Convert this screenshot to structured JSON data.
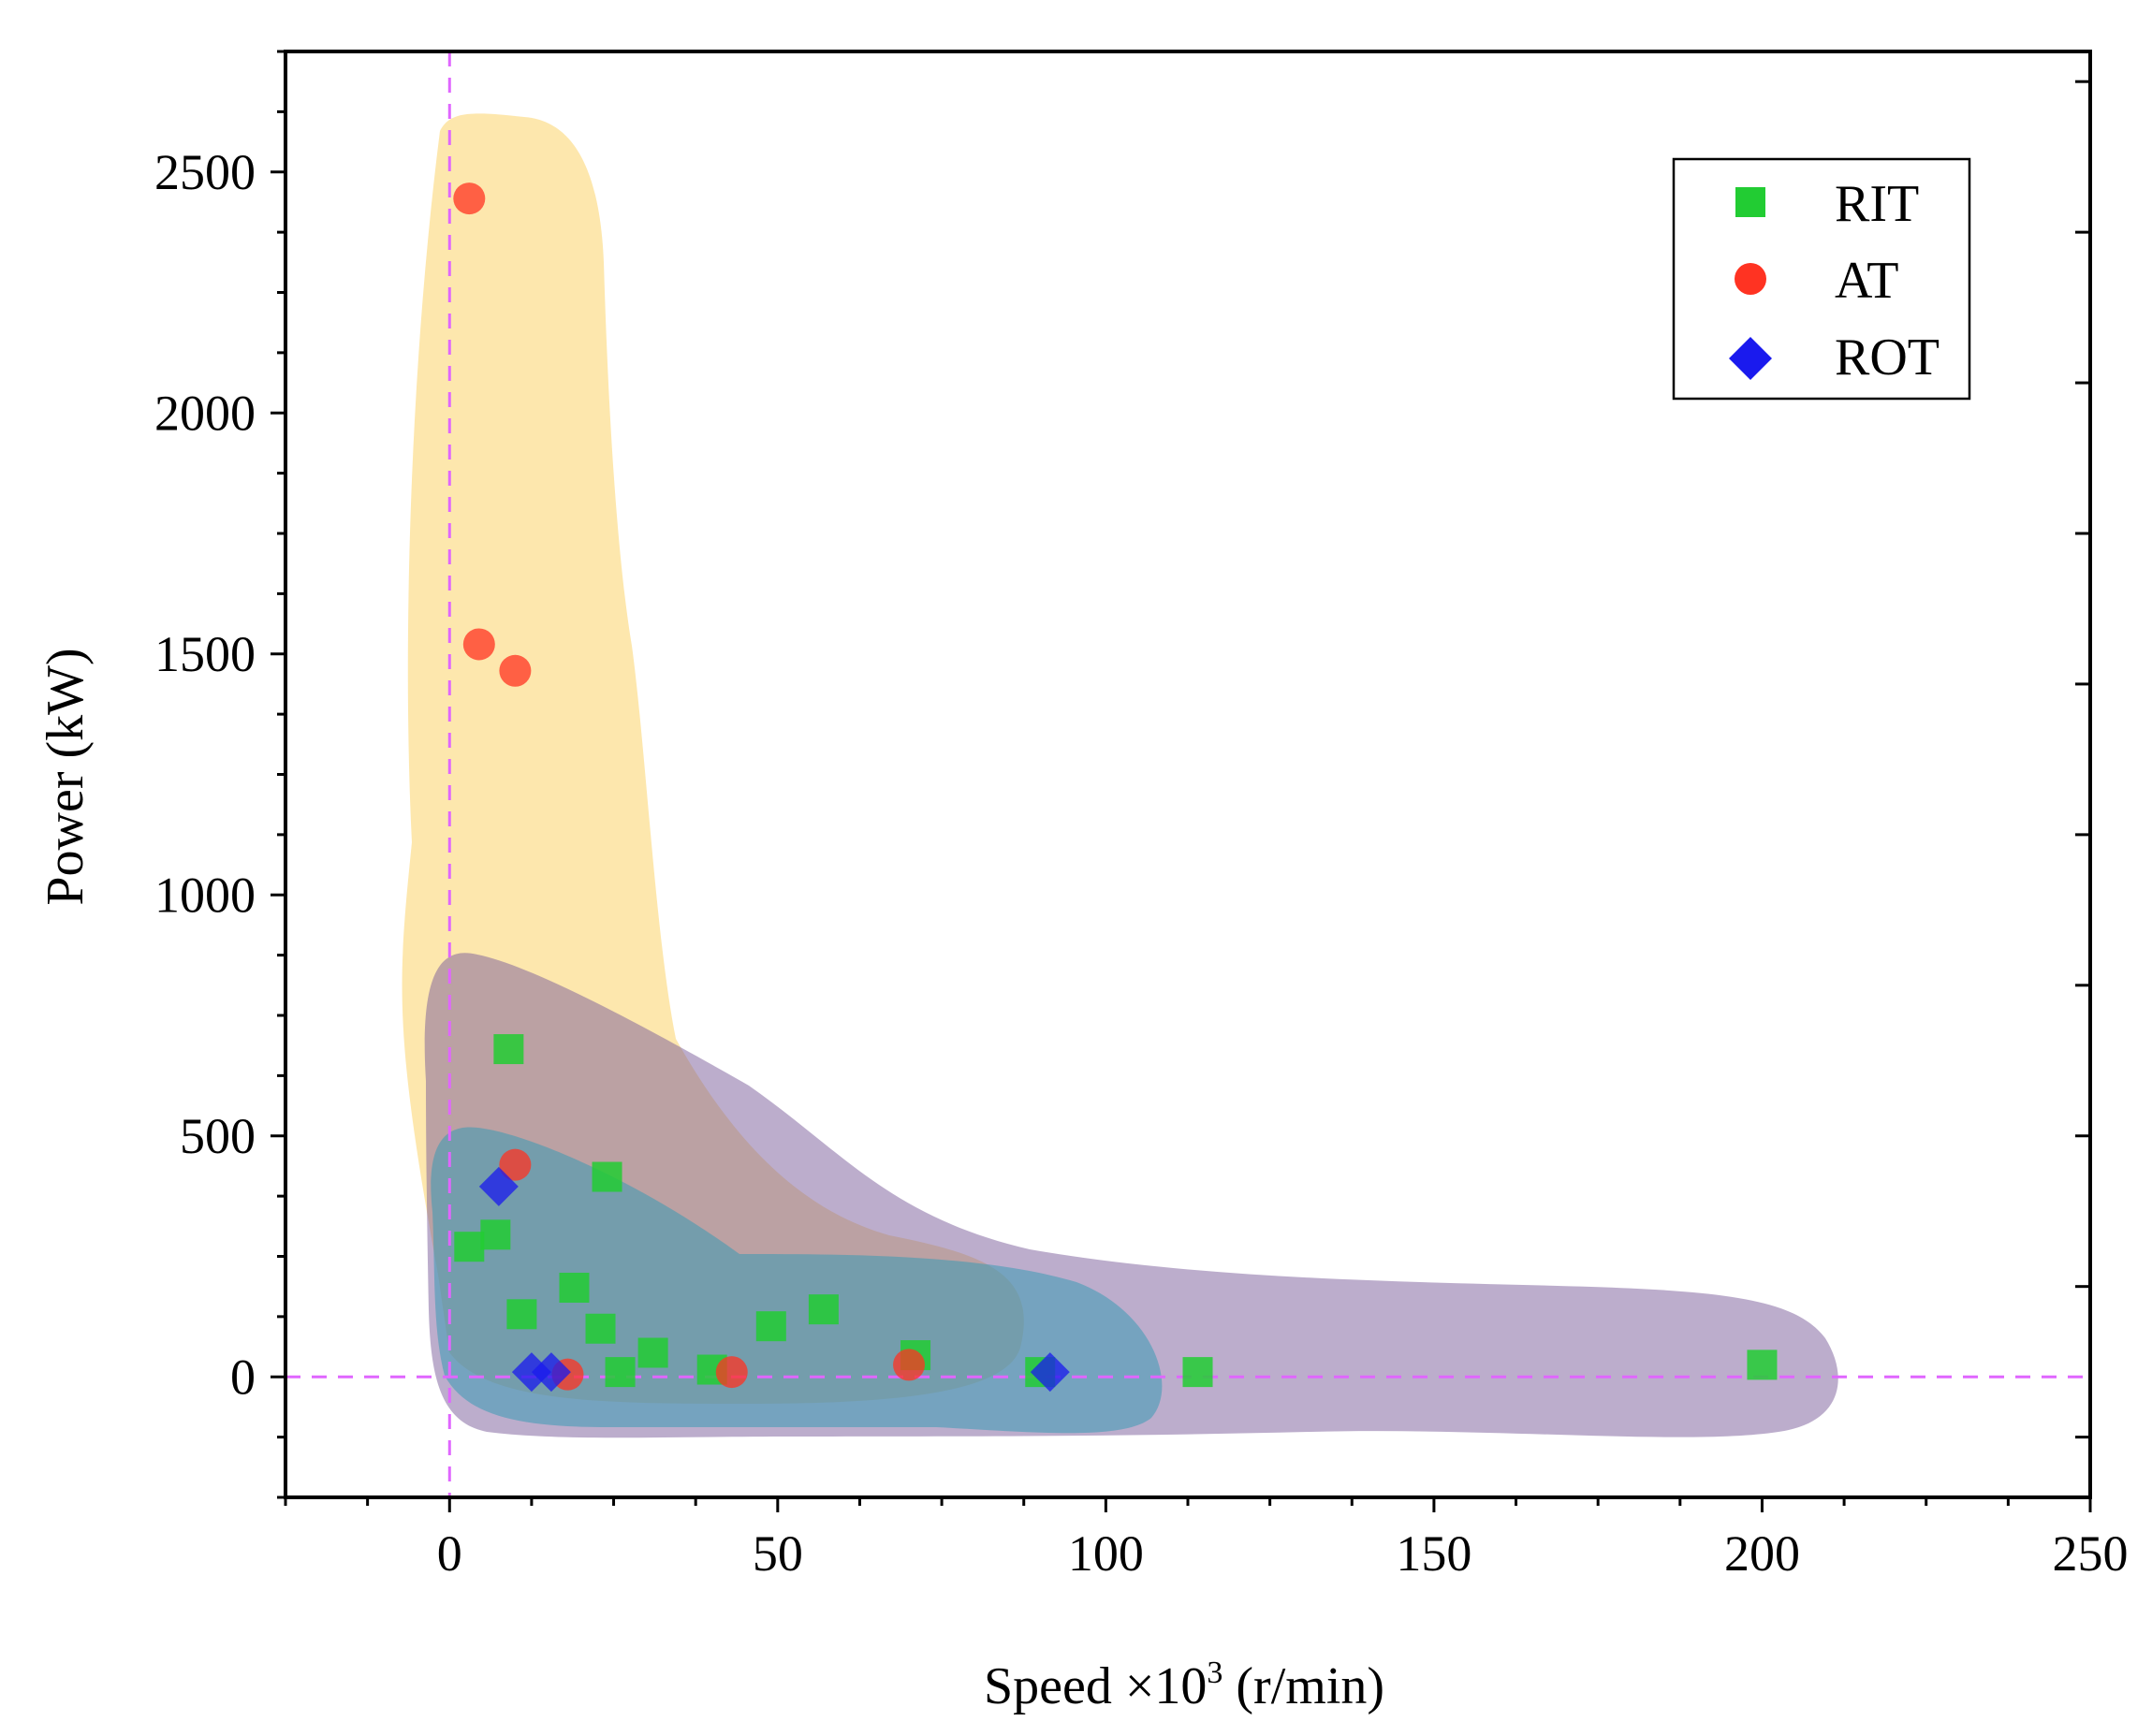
{
  "chart_data": {
    "type": "scatter",
    "title": "",
    "xlabel_prefix": "Speed ×10",
    "xlabel_sup": "3",
    "xlabel_suffix": " (r/min)",
    "ylabel": "Power (kW)",
    "xlim": [
      -25,
      250
    ],
    "ylim": [
      -250,
      2750
    ],
    "xticks": [
      0,
      50,
      100,
      150,
      200,
      250
    ],
    "yticks": [
      0,
      500,
      1000,
      1500,
      2000,
      2500
    ],
    "x_minor_step": 12.5,
    "y_minor_step": 125,
    "grid": false,
    "legend_position": "top-right",
    "reference_lines": [
      {
        "orientation": "vertical",
        "value": 0,
        "style": "dashed",
        "color": "#e066ff"
      },
      {
        "orientation": "horizontal",
        "value": 0,
        "style": "dashed",
        "color": "#e066ff"
      }
    ],
    "series": [
      {
        "name": "RIT",
        "marker": "square",
        "color": "#22cc33",
        "points": [
          [
            9,
            680
          ],
          [
            24,
            415
          ],
          [
            3,
            270
          ],
          [
            7,
            295
          ],
          [
            11,
            130
          ],
          [
            19,
            185
          ],
          [
            23,
            100
          ],
          [
            26,
            10
          ],
          [
            31,
            50
          ],
          [
            40,
            15
          ],
          [
            49,
            105
          ],
          [
            57,
            140
          ],
          [
            71,
            45
          ],
          [
            90,
            10
          ],
          [
            114,
            10
          ],
          [
            200,
            25
          ]
        ]
      },
      {
        "name": "AT",
        "marker": "circle",
        "color": "#ff3322",
        "points": [
          [
            3,
            2445
          ],
          [
            4.5,
            1520
          ],
          [
            10,
            1465
          ],
          [
            10,
            440
          ],
          [
            18,
            5
          ],
          [
            43,
            10
          ],
          [
            70,
            25
          ]
        ]
      },
      {
        "name": "ROT",
        "marker": "diamond",
        "color": "#1a1aee",
        "points": [
          [
            7.5,
            395
          ],
          [
            12.5,
            10
          ],
          [
            15.5,
            10
          ],
          [
            91.5,
            10
          ]
        ]
      }
    ],
    "regions": [
      {
        "label": "AT region",
        "color": "#fcd36a"
      },
      {
        "label": "RIT region",
        "color": "#7a5c9a"
      },
      {
        "label": "ROT region",
        "color": "#3a9ab4"
      }
    ]
  }
}
